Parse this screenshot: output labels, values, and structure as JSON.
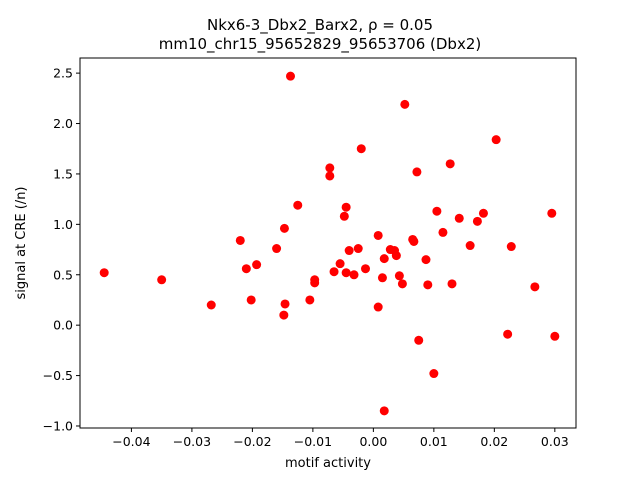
{
  "chart_data": {
    "type": "scatter",
    "title_line1": "Nkx6-3_Dbx2_Barx2, ρ = 0.05",
    "title_line2": "mm10_chr15_95652829_95653706 (Dbx2)",
    "xlabel": "motif activity",
    "ylabel": "signal at CRE (/n)",
    "xlim": [
      -0.0485,
      0.0335
    ],
    "ylim": [
      -1.02,
      2.65
    ],
    "xticks": [
      -0.04,
      -0.03,
      -0.02,
      -0.01,
      0.0,
      0.01,
      0.02,
      0.03
    ],
    "xtick_labels": [
      "−0.04",
      "−0.03",
      "−0.02",
      "−0.01",
      "0.00",
      "0.01",
      "0.02",
      "0.03"
    ],
    "yticks": [
      -1.0,
      -0.5,
      0.0,
      0.5,
      1.0,
      1.5,
      2.0,
      2.5
    ],
    "ytick_labels": [
      "−1.0",
      "−0.5",
      "0.0",
      "0.5",
      "1.0",
      "1.5",
      "2.0",
      "2.5"
    ],
    "grid": false,
    "marker_color": "#ff0000",
    "points": [
      [
        -0.0445,
        0.52
      ],
      [
        -0.035,
        0.45
      ],
      [
        -0.0268,
        0.2
      ],
      [
        -0.022,
        0.84
      ],
      [
        -0.021,
        0.56
      ],
      [
        -0.0202,
        0.25
      ],
      [
        -0.0193,
        0.6
      ],
      [
        -0.016,
        0.76
      ],
      [
        -0.0147,
        0.96
      ],
      [
        -0.0146,
        0.21
      ],
      [
        -0.0148,
        0.1
      ],
      [
        -0.0137,
        2.47
      ],
      [
        -0.0125,
        1.19
      ],
      [
        -0.0105,
        0.25
      ],
      [
        -0.0097,
        0.45
      ],
      [
        -0.0097,
        0.42
      ],
      [
        -0.0072,
        1.56
      ],
      [
        -0.0072,
        1.48
      ],
      [
        -0.0065,
        0.53
      ],
      [
        -0.0055,
        0.61
      ],
      [
        -0.0048,
        1.08
      ],
      [
        -0.0045,
        1.17
      ],
      [
        -0.0045,
        0.52
      ],
      [
        -0.004,
        0.74
      ],
      [
        -0.0032,
        0.5
      ],
      [
        -0.0025,
        0.76
      ],
      [
        -0.002,
        1.75
      ],
      [
        -0.0013,
        0.56
      ],
      [
        0.0008,
        0.89
      ],
      [
        0.0008,
        0.18
      ],
      [
        0.0015,
        0.47
      ],
      [
        0.0018,
        0.66
      ],
      [
        0.0018,
        -0.85
      ],
      [
        0.0028,
        0.75
      ],
      [
        0.0035,
        0.74
      ],
      [
        0.0038,
        0.69
      ],
      [
        0.0043,
        0.49
      ],
      [
        0.0048,
        0.41
      ],
      [
        0.0052,
        2.19
      ],
      [
        0.0065,
        0.85
      ],
      [
        0.0067,
        0.83
      ],
      [
        0.0072,
        1.52
      ],
      [
        0.0075,
        -0.15
      ],
      [
        0.0087,
        0.65
      ],
      [
        0.009,
        0.4
      ],
      [
        0.01,
        -0.48
      ],
      [
        0.0105,
        1.13
      ],
      [
        0.0115,
        0.92
      ],
      [
        0.0127,
        1.6
      ],
      [
        0.013,
        0.41
      ],
      [
        0.0142,
        1.06
      ],
      [
        0.016,
        0.79
      ],
      [
        0.0172,
        1.03
      ],
      [
        0.0182,
        1.11
      ],
      [
        0.0203,
        1.84
      ],
      [
        0.0222,
        -0.09
      ],
      [
        0.0228,
        0.78
      ],
      [
        0.0267,
        0.38
      ],
      [
        0.0295,
        1.11
      ],
      [
        0.03,
        -0.11
      ]
    ]
  }
}
